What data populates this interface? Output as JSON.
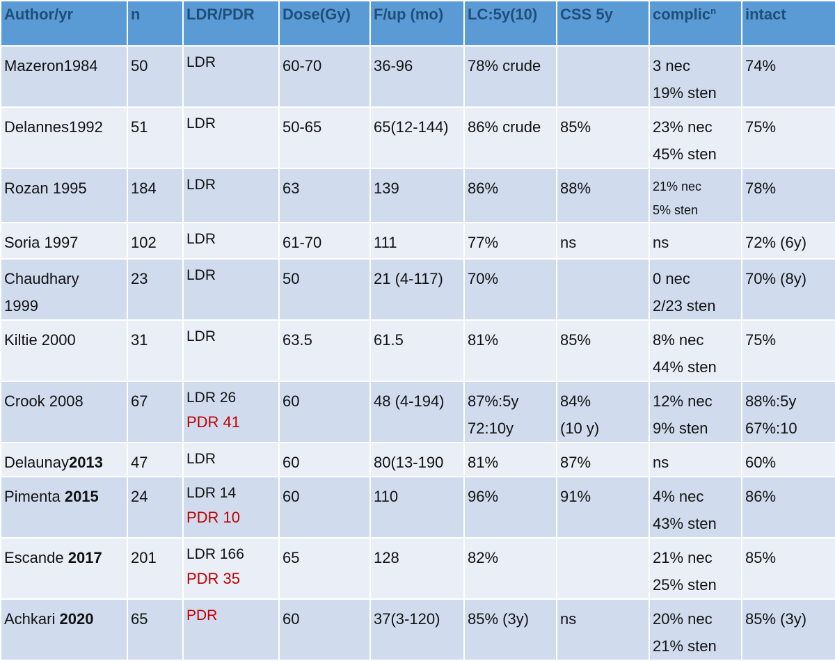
{
  "table": {
    "headers": [
      "Author/yr",
      "n",
      "LDR/PDR",
      "Dose(Gy)",
      "F/up (mo)",
      "LC:5y(10)",
      "CSS 5y",
      "complic",
      "intact"
    ],
    "header_superscript": "n",
    "colors": {
      "header_bg": "#5b9bd5",
      "header_text": "#1f4e79",
      "row_odd_bg": "#d0dcee",
      "row_even_bg": "#e9eef7",
      "pdr_text": "#c00000"
    },
    "rows": [
      {
        "author": "Mazeron1984",
        "author_year": "",
        "n": "50",
        "type": [
          "LDR"
        ],
        "type_pdr": [],
        "dose": "60-70",
        "fup": "36-96",
        "lc": [
          "78% crude"
        ],
        "css": [],
        "complic": [
          "3 nec",
          "19% sten"
        ],
        "intact": [
          "74%"
        ]
      },
      {
        "author": "Delannes1992",
        "author_year": "",
        "n": "51",
        "type": [
          "LDR"
        ],
        "type_pdr": [],
        "dose": "50-65",
        "fup": "65(12-144)",
        "lc": [
          "86% crude"
        ],
        "css": [
          "85%"
        ],
        "complic": [
          "23% nec",
          "45% sten"
        ],
        "intact": [
          "75%"
        ]
      },
      {
        "author": "Rozan 1995",
        "author_year": "",
        "n": "184",
        "type": [
          "LDR"
        ],
        "type_pdr": [],
        "dose": "63",
        "fup": "139",
        "lc": [
          "86%"
        ],
        "css": [
          "88%"
        ],
        "complic_small": [
          "21% nec",
          "5% sten"
        ],
        "intact": [
          "78%"
        ]
      },
      {
        "author": "Soria 1997",
        "author_year": "",
        "n": "102",
        "type": [
          "LDR"
        ],
        "type_pdr": [],
        "dose": "61-70",
        "fup": "111",
        "lc": [
          "77%"
        ],
        "css": [
          "ns"
        ],
        "complic": [
          "ns"
        ],
        "intact": [
          "72% (6y)"
        ]
      },
      {
        "author": "Chaudhary",
        "author_line2": "1999",
        "author_year": "",
        "n": "23",
        "type": [
          "LDR"
        ],
        "type_pdr": [],
        "dose": "50",
        "fup": "21 (4-117)",
        "lc": [
          "70%"
        ],
        "css": [],
        "complic": [
          "0 nec",
          "2/23 sten"
        ],
        "intact": [
          "70% (8y)"
        ]
      },
      {
        "author": "Kiltie 2000",
        "author_year": "",
        "n": "31",
        "type": [
          "LDR"
        ],
        "type_pdr": [],
        "dose": "63.5",
        "fup": "61.5",
        "lc": [
          "81%"
        ],
        "css": [
          "85%"
        ],
        "complic": [
          "8% nec",
          "44% sten"
        ],
        "intact": [
          "75%"
        ]
      },
      {
        "author": "Crook 2008",
        "author_year": "",
        "n": "67",
        "type": [
          "LDR 26"
        ],
        "type_pdr": [
          "PDR 41"
        ],
        "dose": "60",
        "fup": "48 (4-194)",
        "lc": [
          "87%:5y",
          "72:10y"
        ],
        "css": [
          "84%",
          "(10 y)"
        ],
        "complic": [
          "12%  nec",
          "9% sten"
        ],
        "intact": [
          "88%:5y",
          "67%:10"
        ]
      },
      {
        "author": "Delaunay",
        "author_year": "2013",
        "n": "47",
        "type": [
          "LDR"
        ],
        "type_pdr": [],
        "dose": "60",
        "fup": "80(13-190",
        "lc": [
          "81%"
        ],
        "css": [
          "87%"
        ],
        "complic": [
          "ns"
        ],
        "intact": [
          "60%"
        ]
      },
      {
        "author": "Pimenta ",
        "author_year": "2015",
        "n": "24",
        "type": [
          "LDR 14"
        ],
        "type_pdr": [
          "PDR 10"
        ],
        "dose": "60",
        "fup": "110",
        "lc": [
          "96%"
        ],
        "css": [
          "91%"
        ],
        "complic": [
          "4%  nec",
          "43% sten"
        ],
        "intact": [
          "86%"
        ]
      },
      {
        "author": "Escande ",
        "author_year": "2017",
        "n": "201",
        "type": [
          "LDR 166"
        ],
        "type_pdr": [
          "PDR 35"
        ],
        "dose": "65",
        "fup": "128",
        "lc": [
          "82%"
        ],
        "css": [],
        "complic": [
          "21% nec",
          "25% sten"
        ],
        "intact": [
          "85%"
        ]
      },
      {
        "author": "Achkari ",
        "author_year": "2020",
        "n": "65",
        "type": [],
        "type_pdr": [
          "PDR"
        ],
        "dose": "60",
        "fup": "37(3-120)",
        "lc": [
          "85% (3y)"
        ],
        "css": [
          "ns"
        ],
        "complic": [
          "20%  nec",
          "21% sten"
        ],
        "intact": [
          "85% (3y)"
        ]
      }
    ]
  }
}
